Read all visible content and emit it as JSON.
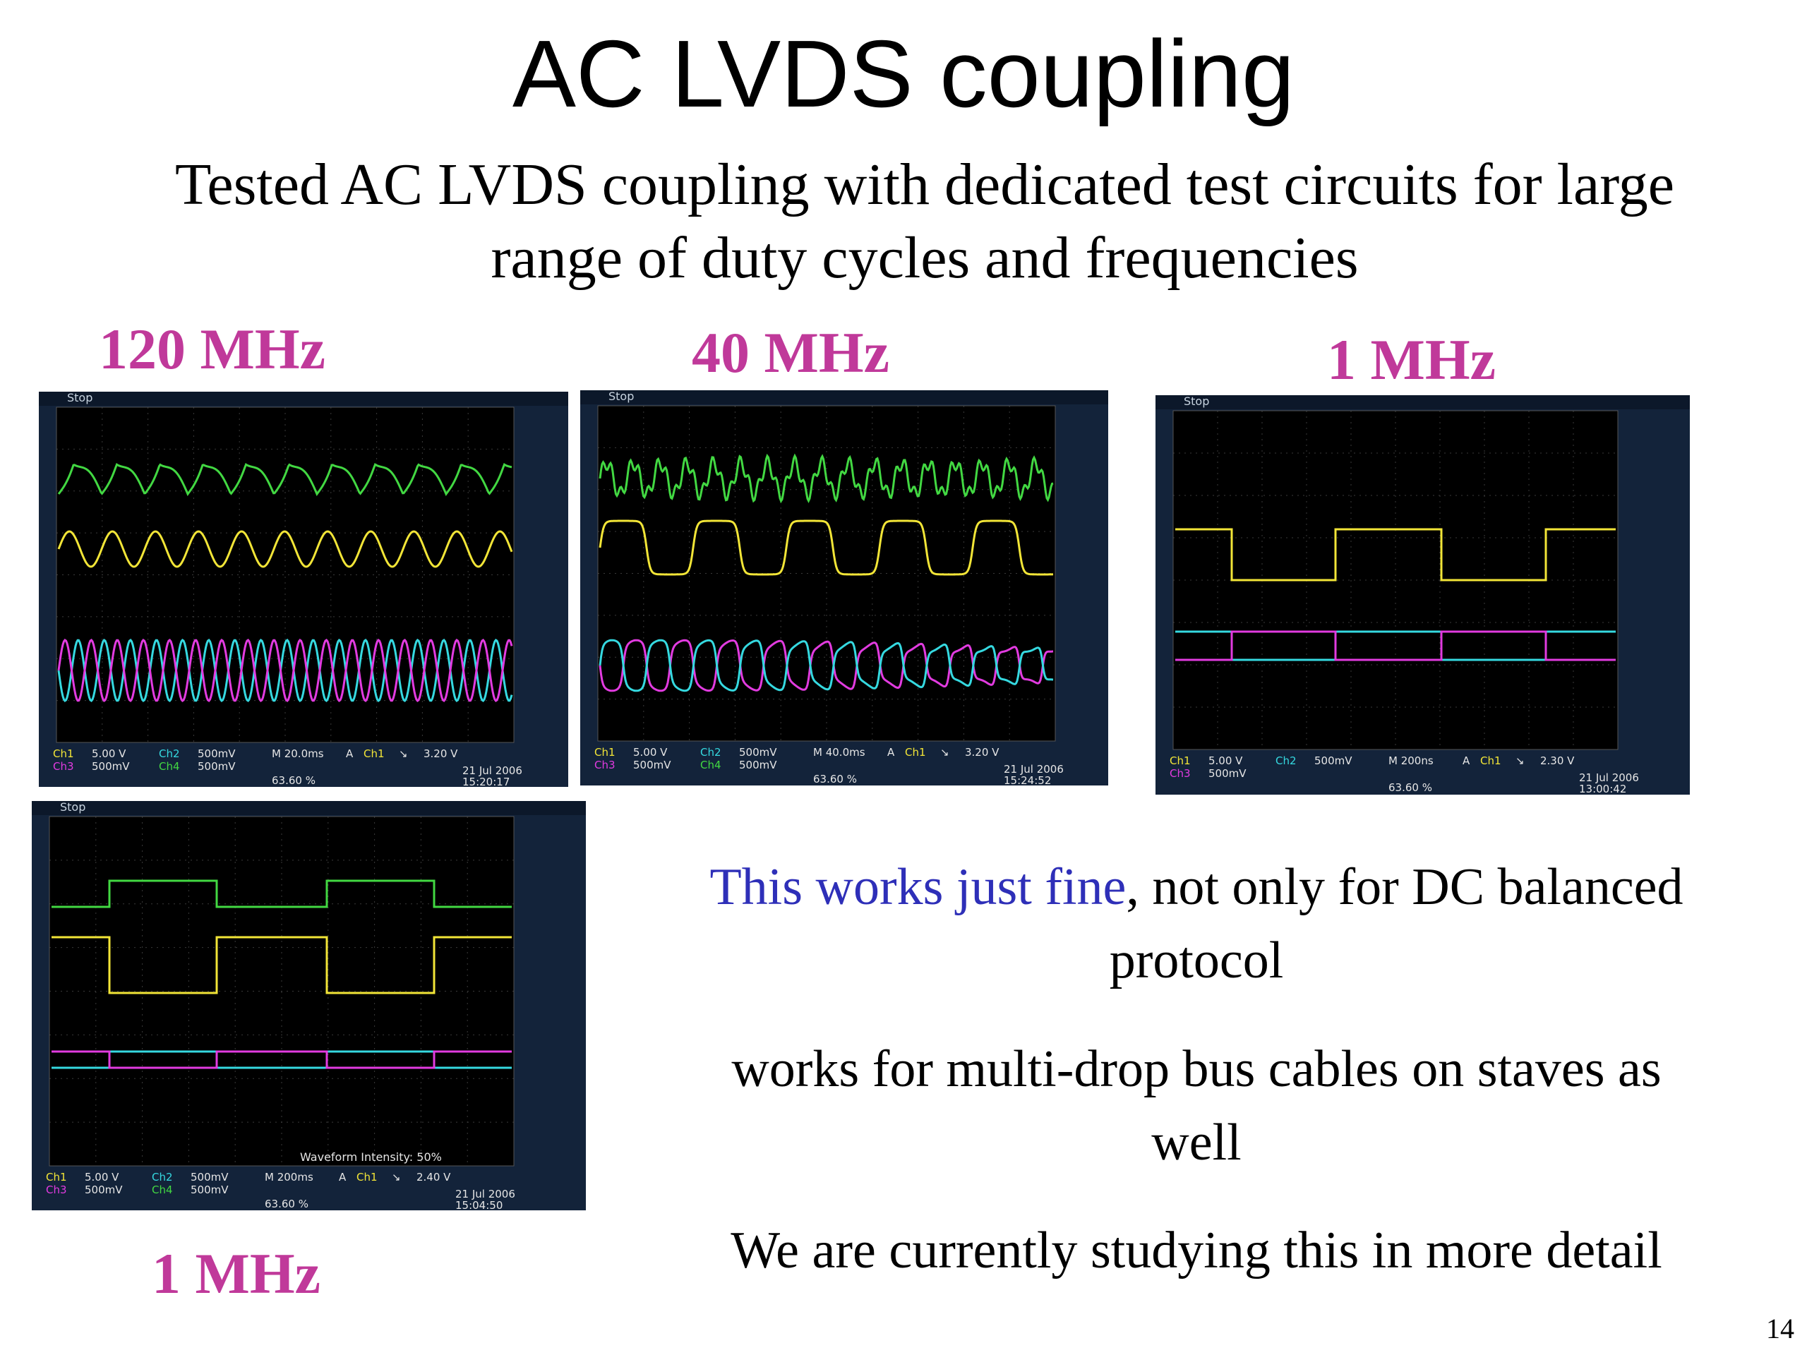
{
  "slide": {
    "title": "AC LVDS coupling",
    "subtitle_line1": "Tested AC LVDS coupling with dedicated test circuits for large",
    "subtitle_line2": "range of duty cycles and frequencies",
    "page_number": "14"
  },
  "labels": {
    "f120": "120 MHz",
    "f40": "40 MHz",
    "f1_top": "1 MHz",
    "f1_bottom": "1 MHz"
  },
  "text": {
    "p1_highlight": "This works just fine",
    "p1_rest": ", not only for DC balanced",
    "p1_line2": "protocol",
    "p2_line1": "works for multi-drop bus cables on staves as",
    "p2_line2": "well",
    "p3": "We are currently studying this in more detail"
  },
  "colors": {
    "freq_label": "#c0399a",
    "highlight_text": "#2e2fb8",
    "ch1": "#f2e537",
    "ch2": "#35d9e0",
    "ch3": "#e23be0",
    "ch4": "#42d842"
  },
  "scopes": [
    {
      "status": "Stop",
      "row1": [
        "Ch1",
        "5.00 V",
        "Ch2",
        "500mV",
        "M 20.0ms",
        "A",
        "Ch1",
        "↘",
        "3.20 V"
      ],
      "row2": [
        "Ch3",
        "500mV",
        "Ch4",
        "500mV"
      ],
      "trigger": "63.60 %",
      "date": "21 Jul  2006",
      "time": "15:20:17"
    },
    {
      "status": "Stop",
      "row1": [
        "Ch1",
        "5.00 V",
        "Ch2",
        "500mV",
        "M 40.0ms",
        "A",
        "Ch1",
        "↘",
        "3.20 V"
      ],
      "row2": [
        "Ch3",
        "500mV",
        "Ch4",
        "500mV"
      ],
      "trigger": "63.60 %",
      "date": "21 Jul  2006",
      "time": "15:24:52"
    },
    {
      "status": "Stop",
      "row1": [
        "Ch1",
        "5.00 V",
        "Ch2",
        "500mV",
        "M 200ns",
        "A",
        "Ch1",
        "↘",
        "2.30 V"
      ],
      "row2": [
        "Ch3",
        "500mV"
      ],
      "trigger": "63.60 %",
      "date": "21 Jul  2006",
      "time": "13:00:42"
    },
    {
      "status": "Stop",
      "row1": [
        "Ch1",
        "5.00 V",
        "Ch2",
        "500mV",
        "M 200ms",
        "A",
        "Ch1",
        "↘",
        "2.40 V"
      ],
      "row2": [
        "Ch3",
        "500mV",
        "Ch4",
        "500mV"
      ],
      "trigger": "63.60 %",
      "date": "21 Jul  2006",
      "time": "15:04:50",
      "intensity": "Waveform Intensity:  50%"
    }
  ]
}
